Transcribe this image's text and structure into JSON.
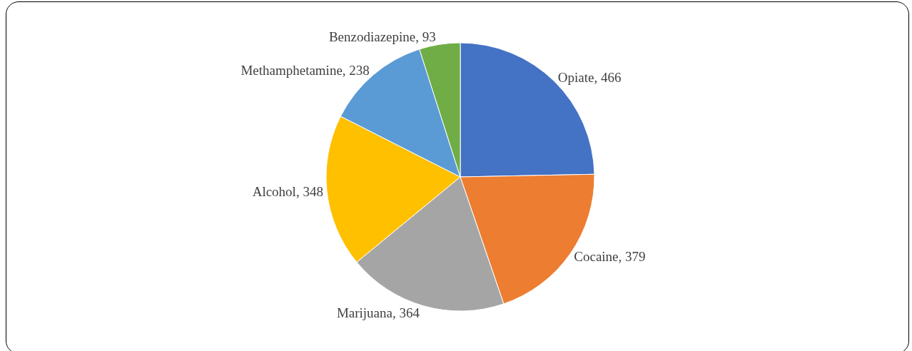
{
  "chart_data": {
    "type": "pie",
    "categories": [
      "Opiate, 466",
      "Cocaine, 379",
      "Marijuana, 364",
      "Alcohol, 348",
      "Methamphetamine, 238",
      "Benzodiazepine, 93"
    ],
    "values": [
      466,
      379,
      364,
      348,
      238,
      93
    ],
    "colors": [
      "#4472c4",
      "#ed7d31",
      "#a5a5a5",
      "#ffc000",
      "#5b9bd5",
      "#70ad47"
    ],
    "legend": false
  }
}
